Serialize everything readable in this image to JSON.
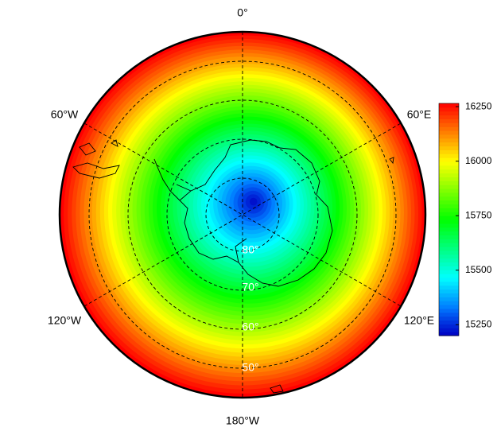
{
  "map": {
    "longitude_labels": [
      "0°",
      "60°E",
      "120°E",
      "180°W",
      "120°W",
      "60°W"
    ],
    "latitude_labels": [
      "80°",
      "70°",
      "60°",
      "50°"
    ]
  },
  "colorbar": {
    "range": [
      15200,
      16265
    ],
    "ticks": [
      15250,
      15500,
      15750,
      16000,
      16250
    ]
  }
}
